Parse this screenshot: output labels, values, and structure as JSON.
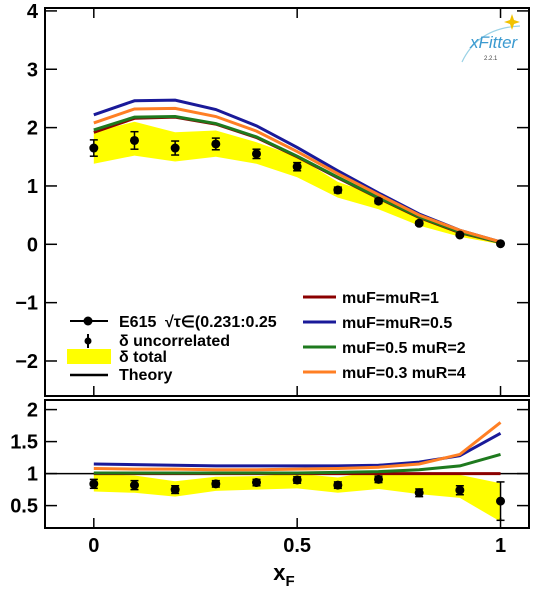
{
  "logo": {
    "text": "xFitter",
    "version": "2.2.1"
  },
  "legend_left": [
    {
      "marker": "dot",
      "label": "E615",
      "extra": "√τ∈(0.231:0.25"
    },
    {
      "marker": "diamond",
      "label": "δ uncorrelated"
    },
    {
      "marker": "band",
      "label": "δ total"
    },
    {
      "marker": "line",
      "label": "Theory"
    }
  ],
  "chart_data": [
    {
      "type": "line",
      "panel": "main",
      "xlabel": "",
      "ylabel": "",
      "xlim": [
        -0.12,
        1.07
      ],
      "ylim": [
        -2.6,
        4.05
      ],
      "yticks": [
        "4",
        "3",
        "2",
        "1",
        "0",
        "−1",
        "−2"
      ],
      "ytick_values": [
        4,
        3,
        2,
        1,
        0,
        -1,
        -2
      ],
      "x": [
        0,
        0.1,
        0.2,
        0.3,
        0.4,
        0.5,
        0.6,
        0.7,
        0.8,
        0.9,
        1.0
      ],
      "data": {
        "name": "E615",
        "y": [
          1.65,
          1.78,
          1.65,
          1.72,
          1.55,
          1.33,
          0.93,
          0.74,
          0.36,
          0.16,
          0.01
        ],
        "err_unc": [
          0.14,
          0.15,
          0.12,
          0.1,
          0.08,
          0.07,
          0.05,
          0.04,
          0.03,
          0.02,
          0.01
        ],
        "band_lo": [
          1.38,
          1.52,
          1.42,
          1.5,
          1.38,
          1.15,
          0.8,
          0.6,
          0.32,
          0.13,
          0.0
        ],
        "band_hi": [
          1.93,
          2.1,
          1.92,
          1.95,
          1.75,
          1.5,
          1.07,
          0.83,
          0.44,
          0.2,
          0.02
        ]
      },
      "series": [
        {
          "name": "muF=muR=1",
          "color": "#8b0000",
          "y": [
            1.92,
            2.16,
            2.18,
            2.06,
            1.83,
            1.5,
            1.14,
            0.79,
            0.46,
            0.2,
            0.03
          ]
        },
        {
          "name": "muF=muR=0.5",
          "color": "#1a1a99",
          "y": [
            2.22,
            2.46,
            2.47,
            2.31,
            2.03,
            1.66,
            1.26,
            0.88,
            0.52,
            0.24,
            0.04
          ]
        },
        {
          "name": "muF=0.5 muR=2",
          "color": "#1e7a1e",
          "y": [
            1.96,
            2.18,
            2.19,
            2.07,
            1.84,
            1.51,
            1.15,
            0.8,
            0.47,
            0.21,
            0.03
          ]
        },
        {
          "name": "muF=0.3 muR=4",
          "color": "#ff7f24",
          "y": [
            2.08,
            2.32,
            2.33,
            2.19,
            1.94,
            1.59,
            1.21,
            0.85,
            0.5,
            0.24,
            0.04
          ]
        }
      ]
    },
    {
      "type": "line",
      "panel": "ratio",
      "xlabel": "x_F",
      "ylabel": "",
      "xlim": [
        -0.12,
        1.07
      ],
      "ylim": [
        0.15,
        2.15
      ],
      "xticks": [
        "0",
        "0.5",
        "1"
      ],
      "xtick_values": [
        0,
        0.5,
        1
      ],
      "yticks": [
        "2",
        "1.5",
        "1",
        "0.5"
      ],
      "ytick_values": [
        2,
        1.5,
        1,
        0.5
      ],
      "x": [
        0,
        0.1,
        0.2,
        0.3,
        0.4,
        0.5,
        0.6,
        0.7,
        0.8,
        0.9,
        1.0
      ],
      "data": {
        "y": [
          0.84,
          0.82,
          0.75,
          0.84,
          0.86,
          0.9,
          0.82,
          0.91,
          0.7,
          0.74,
          0.57
        ],
        "err_unc": [
          0.07,
          0.07,
          0.06,
          0.05,
          0.05,
          0.05,
          0.05,
          0.05,
          0.06,
          0.07,
          0.3
        ],
        "band_lo": [
          0.72,
          0.7,
          0.64,
          0.73,
          0.75,
          0.77,
          0.7,
          0.76,
          0.68,
          0.62,
          0.25
        ],
        "band_hi": [
          1.0,
          0.97,
          0.88,
          0.95,
          0.96,
          1.0,
          0.94,
          1.05,
          0.98,
          0.98,
          0.85
        ]
      },
      "series": [
        {
          "name": "muF=muR=1",
          "color": "#8b0000",
          "y": [
            1.0,
            1.0,
            1.0,
            1.0,
            1.0,
            1.0,
            1.0,
            1.0,
            1.0,
            1.0,
            1.0
          ]
        },
        {
          "name": "muF=muR=0.5",
          "color": "#1a1a99",
          "y": [
            1.15,
            1.14,
            1.13,
            1.12,
            1.12,
            1.12,
            1.12,
            1.13,
            1.18,
            1.28,
            1.63
          ]
        },
        {
          "name": "muF=0.5 muR=2",
          "color": "#1e7a1e",
          "y": [
            1.01,
            1.01,
            1.01,
            1.01,
            1.01,
            1.01,
            1.02,
            1.03,
            1.06,
            1.12,
            1.3
          ]
        },
        {
          "name": "muF=0.3 muR=4",
          "color": "#ff7f24",
          "y": [
            1.08,
            1.07,
            1.07,
            1.06,
            1.06,
            1.07,
            1.08,
            1.1,
            1.15,
            1.3,
            1.8
          ]
        }
      ]
    }
  ]
}
